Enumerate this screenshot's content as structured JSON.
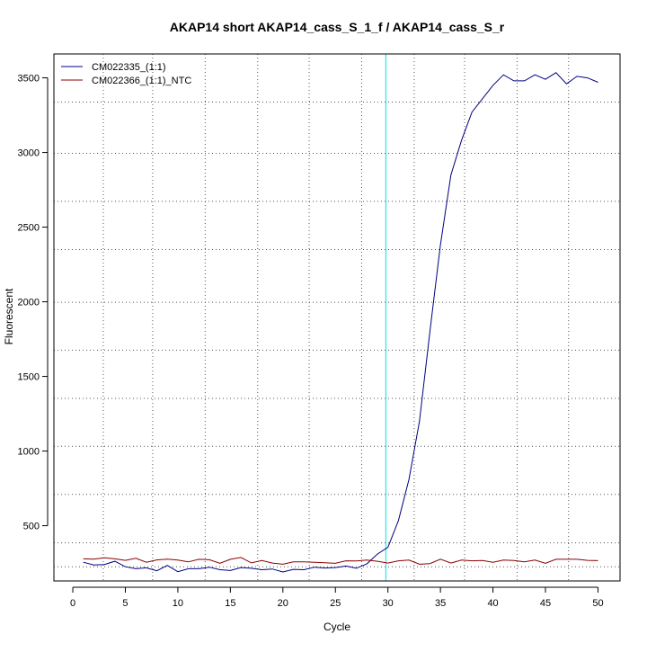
{
  "chart_data": {
    "type": "line",
    "title": "AKAP14 short AKAP14_cass_S_1_f / AKAP14_cass_S_r",
    "xlabel": "Cycle",
    "ylabel": "Fluorescent",
    "xlim": [
      -1.8,
      52.1
    ],
    "ylim": [
      130,
      3660
    ],
    "x_ticks": [
      0,
      5,
      10,
      15,
      20,
      25,
      30,
      35,
      40,
      45,
      50
    ],
    "y_ticks": [
      500,
      1000,
      1500,
      2000,
      2500,
      3000,
      3500
    ],
    "x_grid": [
      2.9,
      7.6,
      12.6,
      17.6,
      22.5,
      27.5,
      32.5,
      37.3,
      42.3,
      47.2
    ],
    "y_grid": [
      225,
      385,
      710,
      1032,
      1353,
      1676,
      1997,
      2350,
      2673,
      2994,
      3338
    ],
    "grid": true,
    "legend_position": "top-left",
    "threshold_cycle": 29.8,
    "threshold_color": "#00e5e5",
    "series": [
      {
        "name": "CM022335_(1:1)",
        "color": "#000080",
        "x": [
          1,
          2,
          3,
          4,
          5,
          6,
          7,
          8,
          9,
          10,
          11,
          12,
          13,
          14,
          15,
          16,
          17,
          18,
          19,
          20,
          21,
          22,
          23,
          24,
          25,
          26,
          27,
          28,
          29,
          30,
          31,
          32,
          33,
          34,
          35,
          36,
          37,
          38,
          39,
          40,
          41,
          42,
          43,
          44,
          45,
          46,
          47,
          48,
          49,
          50
        ],
        "values": [
          255,
          237,
          240,
          262,
          225,
          212,
          218,
          198,
          234,
          192,
          212,
          212,
          222,
          205,
          200,
          220,
          215,
          205,
          210,
          190,
          208,
          205,
          222,
          217,
          220,
          230,
          215,
          245,
          310,
          355,
          535,
          810,
          1200,
          1800,
          2380,
          2850,
          3080,
          3270,
          3360,
          3450,
          3520,
          3480,
          3480,
          3520,
          3490,
          3535,
          3460,
          3510,
          3500,
          3470
        ]
      },
      {
        "name": "CM022366_(1:1)_NTC",
        "color": "#8b0000",
        "x": [
          1,
          2,
          3,
          4,
          5,
          6,
          7,
          8,
          9,
          10,
          11,
          12,
          13,
          14,
          15,
          16,
          17,
          18,
          19,
          20,
          21,
          22,
          23,
          24,
          25,
          26,
          27,
          28,
          29,
          30,
          31,
          32,
          33,
          34,
          35,
          36,
          37,
          38,
          39,
          40,
          41,
          42,
          43,
          44,
          45,
          46,
          47,
          48,
          49,
          50
        ],
        "values": [
          278,
          276,
          285,
          278,
          268,
          282,
          255,
          271,
          276,
          270,
          258,
          275,
          272,
          248,
          275,
          287,
          251,
          267,
          250,
          242,
          258,
          258,
          255,
          252,
          248,
          265,
          264,
          270,
          262,
          250,
          265,
          270,
          242,
          246,
          276,
          250,
          270,
          265,
          267,
          255,
          270,
          267,
          258,
          270,
          248,
          275,
          275,
          275,
          268,
          266
        ]
      }
    ]
  }
}
